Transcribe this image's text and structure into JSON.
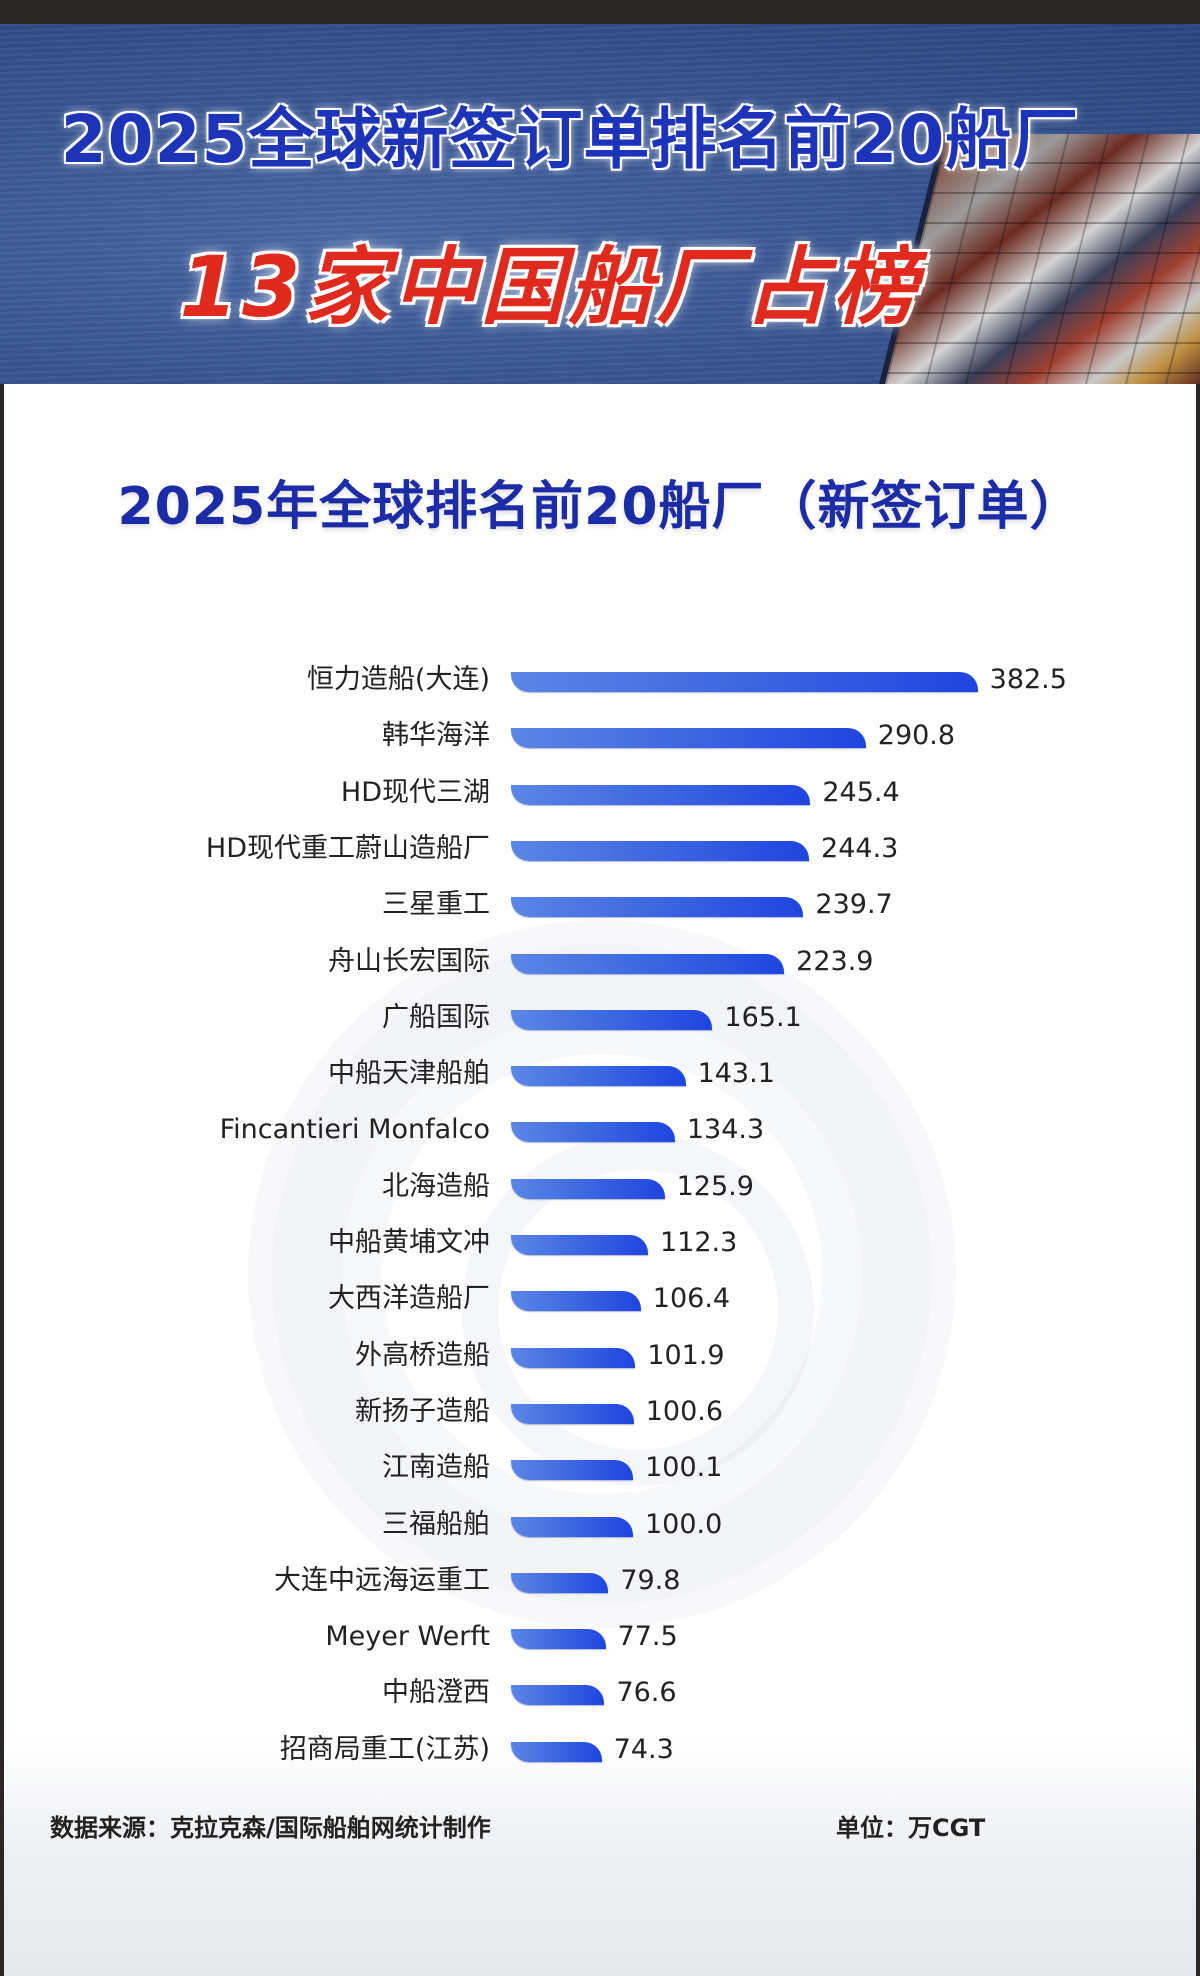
{
  "hero": {
    "title_line1": "2025全球新签订单排名前20船厂",
    "title_line2": "13家中国船厂占榜"
  },
  "chart": {
    "title": "2025年全球排名前20船厂（新签订单）"
  },
  "footer": {
    "source": "数据来源：克拉克森/国际船舶网统计制作",
    "unit": "单位：万CGT"
  },
  "colors": {
    "bar_start": "#5b86e6",
    "bar_end": "#1f45e0",
    "title_blue": "#1c2ca6",
    "hero_red": "#e12a1e",
    "hero_blue": "#1d33b8"
  },
  "chart_data": {
    "type": "bar",
    "orientation": "horizontal",
    "title": "2025年全球排名前20船厂（新签订单）",
    "xlabel": "",
    "ylabel": "",
    "unit": "万CGT",
    "grid": false,
    "legend": "none",
    "categories": [
      "恒力造船(大连)",
      "韩华海洋",
      "HD现代三湖",
      "HD现代重工蔚山造船厂",
      "三星重工",
      "舟山长宏国际",
      "广船国际",
      "中船天津船舶",
      "Fincantieri Monfalco",
      "北海造船",
      "中船黄埔文冲",
      "大西洋造船厂",
      "外高桥造船",
      "新扬子造船",
      "江南造船",
      "三福船舶",
      "大连中远海运重工",
      "Meyer Werft",
      "中船澄西",
      "招商局重工(江苏)"
    ],
    "values": [
      382.5,
      290.8,
      245.4,
      244.3,
      239.7,
      223.9,
      165.1,
      143.1,
      134.3,
      125.9,
      112.3,
      106.4,
      101.9,
      100.6,
      100.1,
      100.0,
      79.8,
      77.5,
      76.6,
      74.3
    ],
    "value_labels": [
      "382.5",
      "290.8",
      "245.4",
      "244.3",
      "239.7",
      "223.9",
      "165.1",
      "143.1",
      "134.3",
      "125.9",
      "112.3",
      "106.4",
      "101.9",
      "100.6",
      "100.1",
      "100.0",
      "79.8",
      "77.5",
      "76.6",
      "74.3"
    ],
    "source": "数据来源：克拉克森/国际船舶网统计制作"
  }
}
